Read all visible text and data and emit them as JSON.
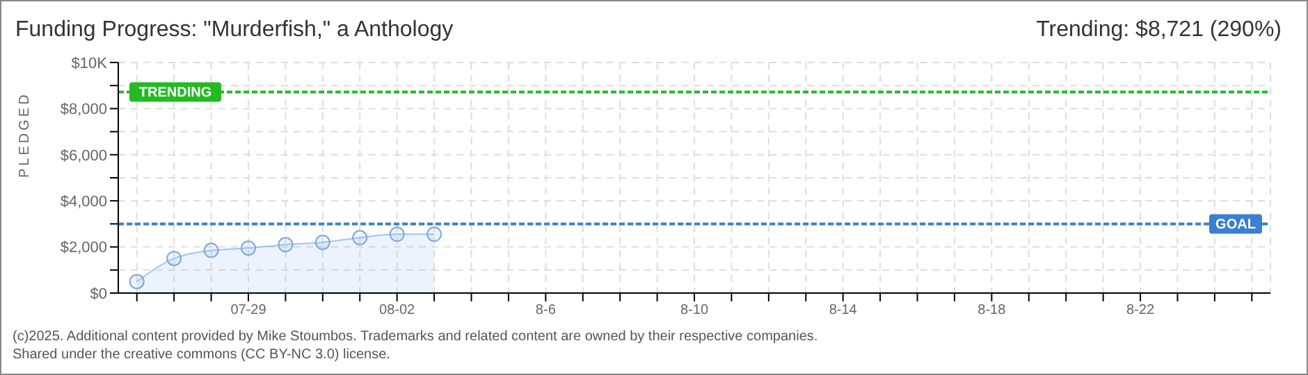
{
  "chart_data": {
    "type": "area",
    "title": "Funding Progress: \"Murderfish,\" a Anthology",
    "ylabel": "PLEDGED",
    "annotations": [
      "Trending: $8,721 (290%)",
      "(c)2025. Additional content provided by Mike Stoumbos. Trademarks and related content are owned by their respective companies.",
      "Shared under the creative commons (CC BY-NC 3.0) license."
    ],
    "categories": [
      null,
      null,
      null,
      "07-29",
      null,
      null,
      null,
      "08-02",
      null,
      null,
      null,
      "8-6",
      null,
      null,
      null,
      "8-10",
      null,
      null,
      null,
      "8-14",
      null,
      null,
      null,
      "8-18",
      null,
      null,
      null,
      "8-22",
      null,
      null,
      null
    ],
    "series": [
      {
        "color": "#9ec4ee",
        "values": [
          500,
          1500,
          1850,
          1950,
          2100,
          2200,
          2400,
          2550,
          2550,
          null,
          null,
          null,
          null,
          null,
          null,
          null,
          null,
          null,
          null,
          null,
          null,
          null,
          null,
          null,
          null,
          null,
          null,
          null,
          null,
          null,
          null
        ]
      }
    ],
    "ylim": [
      0,
      10000
    ],
    "yticks": [
      {
        "value": 0,
        "label": "$0"
      },
      {
        "value": 1000,
        "label": null
      },
      {
        "value": 2000,
        "label": "$2,000"
      },
      {
        "value": 3000,
        "label": null
      },
      {
        "value": 4000,
        "label": "$4,000"
      },
      {
        "value": 5000,
        "label": null
      },
      {
        "value": 6000,
        "label": "$6,000"
      },
      {
        "value": 7000,
        "label": null
      },
      {
        "value": 8000,
        "label": "$8,000"
      },
      {
        "value": 9000,
        "label": null
      },
      {
        "value": 10000,
        "label": "$10K"
      }
    ],
    "ref_lines": [
      {
        "axis": "y",
        "value": 8721,
        "label": "TRENDING",
        "color": "#22bb22",
        "line_style": "dashed"
      },
      {
        "axis": "y",
        "value": 3000,
        "label": "GOAL",
        "color": "#3a7fd0",
        "line_style": "dashed"
      }
    ],
    "grid": true,
    "marker": "circle"
  }
}
